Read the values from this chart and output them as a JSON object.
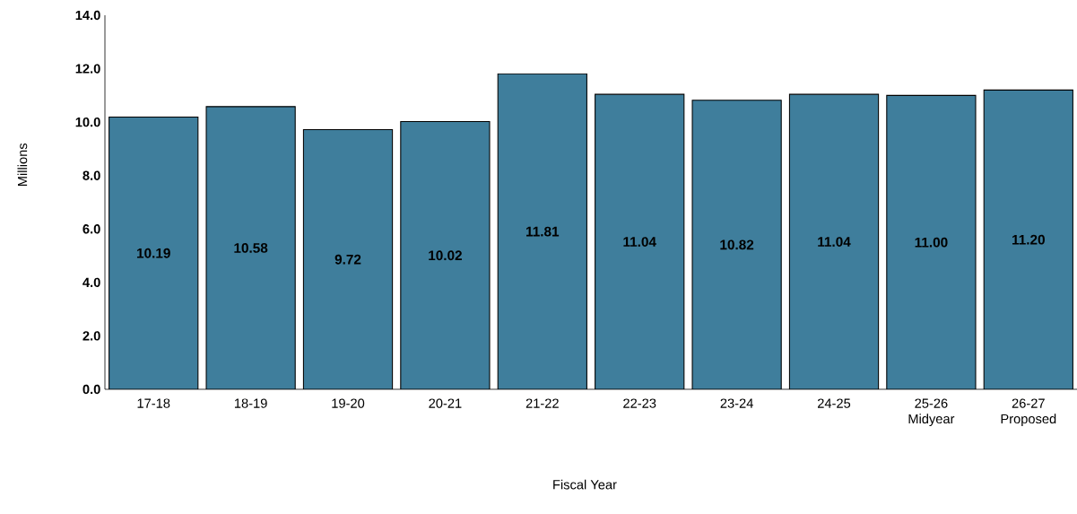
{
  "chart_data": {
    "type": "bar",
    "xlabel": "Fiscal Year",
    "ylabel": "Millions",
    "categories": [
      "17-18",
      "18-19",
      "19-20",
      "20-21",
      "21-22",
      "22-23",
      "23-24",
      "24-25",
      "25-26 Midyear",
      "26-27 Proposed"
    ],
    "values": [
      10.19,
      10.58,
      9.72,
      10.02,
      11.81,
      11.04,
      10.82,
      11.04,
      11.0,
      11.2
    ],
    "value_labels": [
      "10.19",
      "10.58",
      "9.72",
      "10.02",
      "11.81",
      "11.04",
      "10.82",
      "11.04",
      "11.00",
      "11.20"
    ],
    "color": "#3f7e9c",
    "ylim": [
      0,
      14
    ],
    "yticks": [
      {
        "value": 0,
        "label": "0.0"
      },
      {
        "value": 2,
        "label": "2.0"
      },
      {
        "value": 4,
        "label": "4.0"
      },
      {
        "value": 6,
        "label": "6.0"
      },
      {
        "value": 8,
        "label": "8.0"
      },
      {
        "value": 10,
        "label": "10.0"
      },
      {
        "value": 12,
        "label": "12.0"
      },
      {
        "value": 14,
        "label": "14.0"
      }
    ],
    "grid": false
  }
}
